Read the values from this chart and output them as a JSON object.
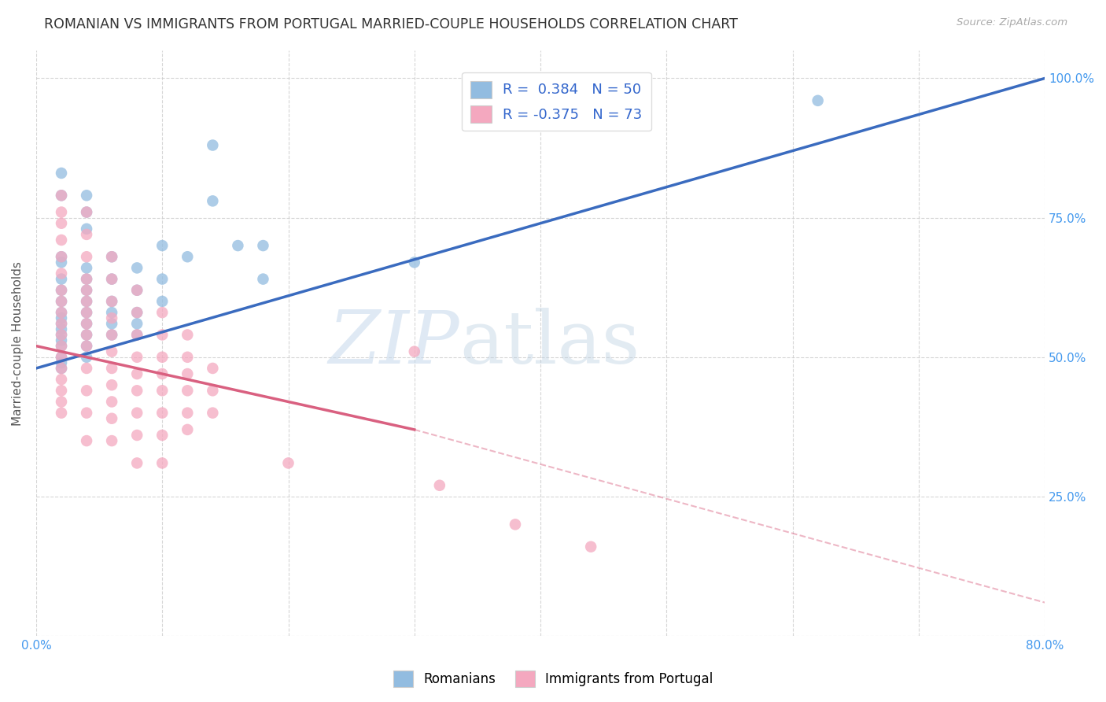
{
  "title": "ROMANIAN VS IMMIGRANTS FROM PORTUGAL MARRIED-COUPLE HOUSEHOLDS CORRELATION CHART",
  "source": "Source: ZipAtlas.com",
  "ylabel": "Married-couple Households",
  "xlim": [
    0.0,
    0.8
  ],
  "ylim": [
    0.0,
    1.05
  ],
  "x_ticks": [
    0.0,
    0.1,
    0.2,
    0.3,
    0.4,
    0.5,
    0.6,
    0.7,
    0.8
  ],
  "x_tick_labels": [
    "0.0%",
    "",
    "",
    "",
    "",
    "",
    "",
    "",
    "80.0%"
  ],
  "y_ticks": [
    0.0,
    0.25,
    0.5,
    0.75,
    1.0
  ],
  "y_tick_labels": [
    "",
    "25.0%",
    "50.0%",
    "75.0%",
    "100.0%"
  ],
  "blue_color": "#92bce0",
  "pink_color": "#f4a8bf",
  "blue_line_color": "#3a6bbf",
  "pink_line_color": "#d96080",
  "blue_line": [
    [
      0.0,
      0.48
    ],
    [
      0.8,
      1.0
    ]
  ],
  "pink_line_solid": [
    [
      0.0,
      0.52
    ],
    [
      0.3,
      0.37
    ]
  ],
  "pink_line_dashed": [
    [
      0.3,
      0.37
    ],
    [
      0.8,
      0.06
    ]
  ],
  "watermark_zip": "ZIP",
  "watermark_atlas": "atlas",
  "blue_scatter": [
    [
      0.02,
      0.83
    ],
    [
      0.02,
      0.79
    ],
    [
      0.04,
      0.79
    ],
    [
      0.04,
      0.76
    ],
    [
      0.04,
      0.73
    ],
    [
      0.02,
      0.68
    ],
    [
      0.02,
      0.67
    ],
    [
      0.02,
      0.64
    ],
    [
      0.02,
      0.62
    ],
    [
      0.02,
      0.6
    ],
    [
      0.02,
      0.58
    ],
    [
      0.02,
      0.57
    ],
    [
      0.02,
      0.56
    ],
    [
      0.02,
      0.55
    ],
    [
      0.02,
      0.54
    ],
    [
      0.02,
      0.53
    ],
    [
      0.02,
      0.52
    ],
    [
      0.02,
      0.5
    ],
    [
      0.02,
      0.49
    ],
    [
      0.02,
      0.48
    ],
    [
      0.04,
      0.66
    ],
    [
      0.04,
      0.64
    ],
    [
      0.04,
      0.62
    ],
    [
      0.04,
      0.6
    ],
    [
      0.04,
      0.58
    ],
    [
      0.04,
      0.56
    ],
    [
      0.04,
      0.54
    ],
    [
      0.04,
      0.52
    ],
    [
      0.04,
      0.5
    ],
    [
      0.06,
      0.68
    ],
    [
      0.06,
      0.64
    ],
    [
      0.06,
      0.6
    ],
    [
      0.06,
      0.58
    ],
    [
      0.06,
      0.56
    ],
    [
      0.06,
      0.54
    ],
    [
      0.08,
      0.66
    ],
    [
      0.08,
      0.62
    ],
    [
      0.08,
      0.58
    ],
    [
      0.08,
      0.56
    ],
    [
      0.08,
      0.54
    ],
    [
      0.1,
      0.7
    ],
    [
      0.1,
      0.64
    ],
    [
      0.1,
      0.6
    ],
    [
      0.12,
      0.68
    ],
    [
      0.14,
      0.88
    ],
    [
      0.14,
      0.78
    ],
    [
      0.16,
      0.7
    ],
    [
      0.18,
      0.7
    ],
    [
      0.18,
      0.64
    ],
    [
      0.3,
      0.67
    ],
    [
      0.62,
      0.96
    ]
  ],
  "pink_scatter": [
    [
      0.02,
      0.79
    ],
    [
      0.02,
      0.76
    ],
    [
      0.02,
      0.74
    ],
    [
      0.02,
      0.71
    ],
    [
      0.02,
      0.68
    ],
    [
      0.02,
      0.65
    ],
    [
      0.02,
      0.62
    ],
    [
      0.02,
      0.6
    ],
    [
      0.02,
      0.58
    ],
    [
      0.02,
      0.56
    ],
    [
      0.02,
      0.54
    ],
    [
      0.02,
      0.52
    ],
    [
      0.02,
      0.5
    ],
    [
      0.02,
      0.48
    ],
    [
      0.02,
      0.46
    ],
    [
      0.02,
      0.44
    ],
    [
      0.02,
      0.42
    ],
    [
      0.02,
      0.4
    ],
    [
      0.04,
      0.76
    ],
    [
      0.04,
      0.72
    ],
    [
      0.04,
      0.68
    ],
    [
      0.04,
      0.64
    ],
    [
      0.04,
      0.62
    ],
    [
      0.04,
      0.6
    ],
    [
      0.04,
      0.58
    ],
    [
      0.04,
      0.56
    ],
    [
      0.04,
      0.54
    ],
    [
      0.04,
      0.52
    ],
    [
      0.04,
      0.48
    ],
    [
      0.04,
      0.44
    ],
    [
      0.04,
      0.4
    ],
    [
      0.04,
      0.35
    ],
    [
      0.06,
      0.68
    ],
    [
      0.06,
      0.64
    ],
    [
      0.06,
      0.6
    ],
    [
      0.06,
      0.57
    ],
    [
      0.06,
      0.54
    ],
    [
      0.06,
      0.51
    ],
    [
      0.06,
      0.48
    ],
    [
      0.06,
      0.45
    ],
    [
      0.06,
      0.42
    ],
    [
      0.06,
      0.39
    ],
    [
      0.06,
      0.35
    ],
    [
      0.08,
      0.62
    ],
    [
      0.08,
      0.58
    ],
    [
      0.08,
      0.54
    ],
    [
      0.08,
      0.5
    ],
    [
      0.08,
      0.47
    ],
    [
      0.08,
      0.44
    ],
    [
      0.08,
      0.4
    ],
    [
      0.08,
      0.36
    ],
    [
      0.08,
      0.31
    ],
    [
      0.1,
      0.58
    ],
    [
      0.1,
      0.54
    ],
    [
      0.1,
      0.5
    ],
    [
      0.1,
      0.47
    ],
    [
      0.1,
      0.44
    ],
    [
      0.1,
      0.4
    ],
    [
      0.1,
      0.36
    ],
    [
      0.1,
      0.31
    ],
    [
      0.12,
      0.54
    ],
    [
      0.12,
      0.5
    ],
    [
      0.12,
      0.47
    ],
    [
      0.12,
      0.44
    ],
    [
      0.12,
      0.4
    ],
    [
      0.12,
      0.37
    ],
    [
      0.14,
      0.48
    ],
    [
      0.14,
      0.44
    ],
    [
      0.14,
      0.4
    ],
    [
      0.2,
      0.31
    ],
    [
      0.3,
      0.51
    ],
    [
      0.32,
      0.27
    ],
    [
      0.38,
      0.2
    ],
    [
      0.44,
      0.16
    ]
  ]
}
